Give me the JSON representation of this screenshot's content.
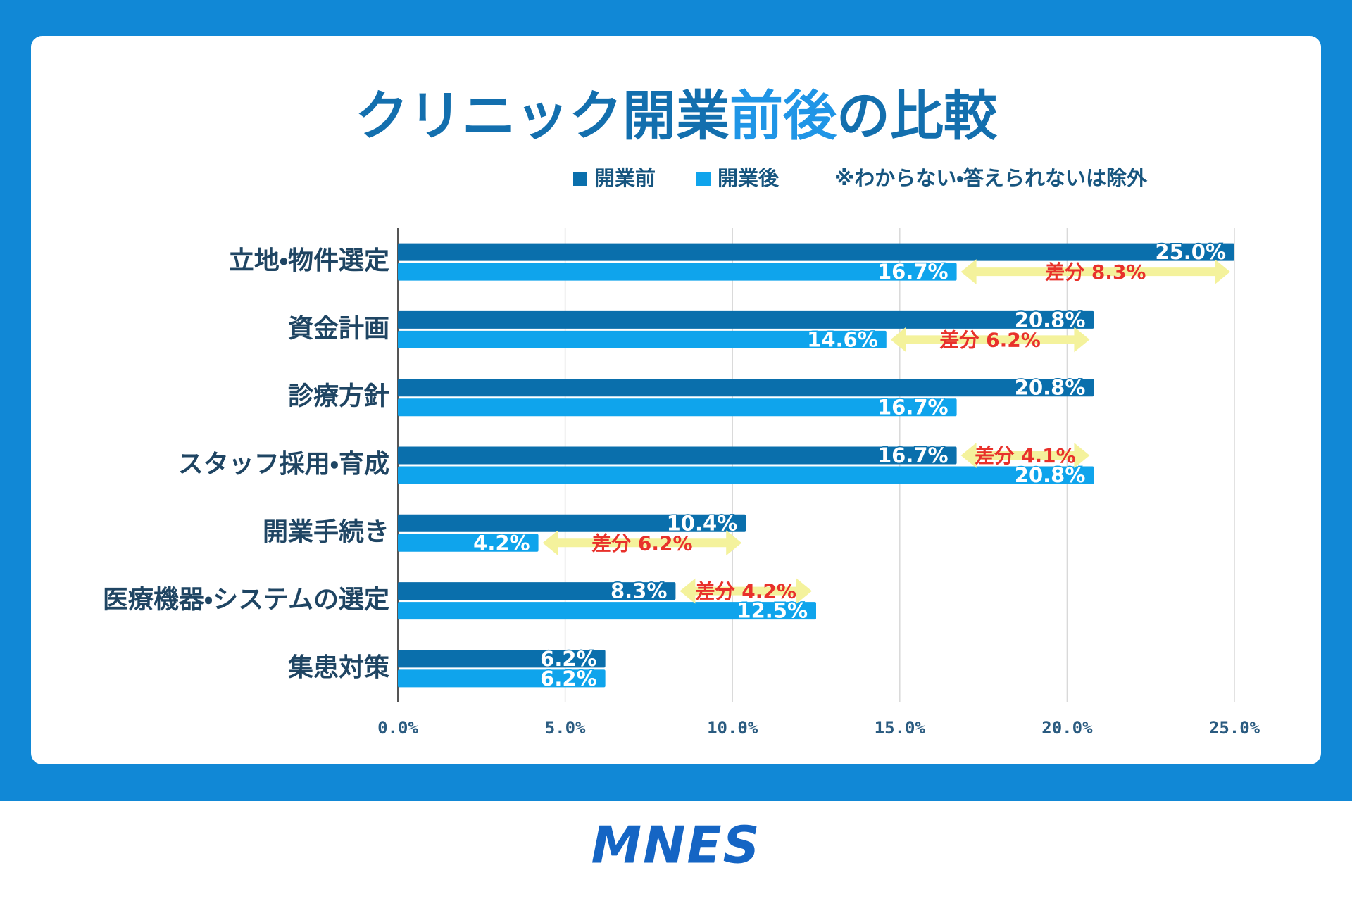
{
  "chart_data": {
    "type": "bar",
    "orientation": "horizontal",
    "title_parts": [
      "クリニック開業",
      "前後",
      "の比較"
    ],
    "note": "※わからない・答えられないは除外",
    "categories": [
      "立地・物件選定",
      "資金計画",
      "診療方針",
      "スタッフ採用・育成",
      "開業手続き",
      "医療機器・システムの選定",
      "集患対策"
    ],
    "series": [
      {
        "name": "開業前",
        "color": "#0a6fac",
        "values": [
          25.0,
          20.8,
          20.8,
          16.7,
          10.4,
          8.3,
          6.2
        ],
        "value_labels": [
          "25.0%",
          "20.8%",
          "20.8%",
          "16.7%",
          "10.4%",
          "8.3%",
          "6.2%"
        ]
      },
      {
        "name": "開業後",
        "color": "#0fa4ec",
        "values": [
          16.7,
          14.6,
          16.7,
          20.8,
          4.2,
          12.5,
          6.2
        ],
        "value_labels": [
          "16.7%",
          "14.6%",
          "16.7%",
          "20.8%",
          "4.2%",
          "12.5%",
          "6.2%"
        ]
      }
    ],
    "diff_labels": [
      "差分 8.3%",
      "差分 6.2%",
      null,
      "差分 4.1%",
      "差分 6.2%",
      "差分 4.2%",
      null
    ],
    "diff_color": "#f4f29c",
    "diff_text_color": "#e8312b",
    "xlim": [
      0,
      25
    ],
    "xticks": [
      {
        "value": 0,
        "label": "0.0%"
      },
      {
        "value": 5,
        "label": "5.0%"
      },
      {
        "value": 10,
        "label": "10.0%"
      },
      {
        "value": 15,
        "label": "15.0%"
      },
      {
        "value": 20,
        "label": "20.0%"
      },
      {
        "value": 25,
        "label": "25.0%"
      }
    ],
    "grid": true
  },
  "footer": {
    "logo": "MNES"
  }
}
